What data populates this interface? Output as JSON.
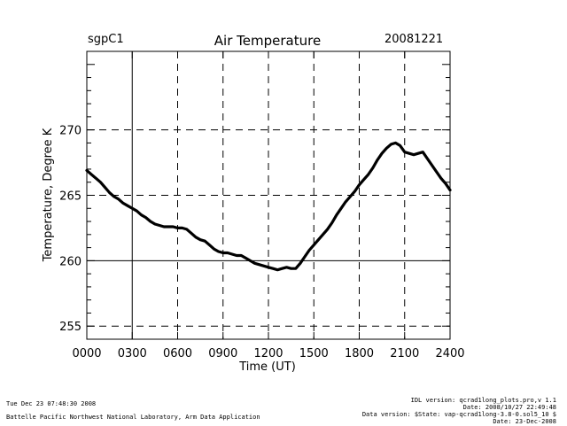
{
  "header": {
    "site": "sgpC1",
    "date": "20081221"
  },
  "footer": {
    "left_line1": "Tue Dec 23 07:48:30 2008",
    "left_line2": "Battelle Pacific Northwest National Laboratory, Arm Data Application",
    "right_line1": "IDL version: qcrad1long_plots.pro,v 1.1",
    "right_line2": "Date: 2008/10/27 22:49:48",
    "right_line3": "Data version: $State: vap-qcrad1long-3.8-0.sol5_10 $",
    "right_line4": "Date: 23-Dec-2008"
  },
  "colors": {
    "line": "#000000",
    "grid": "#000000",
    "background": "#ffffff"
  },
  "chart_data": {
    "type": "line",
    "title": "Air Temperature",
    "xlabel": "Time (UT)",
    "ylabel": "Temperature, Degree K",
    "xlim": [
      0,
      2400
    ],
    "ylim": [
      254,
      276
    ],
    "x_ticks": [
      "0000",
      "0300",
      "0600",
      "0900",
      "1200",
      "1500",
      "1800",
      "2100",
      "2400"
    ],
    "x_tick_values": [
      0,
      300,
      600,
      900,
      1200,
      1500,
      1800,
      2100,
      2400
    ],
    "y_ticks": [
      "255",
      "260",
      "265",
      "270"
    ],
    "y_tick_values": [
      255,
      260,
      265,
      270
    ],
    "grid": "dashed",
    "series": [
      {
        "x": [
          0,
          30,
          60,
          90,
          120,
          150,
          180,
          210,
          240,
          270,
          300,
          330,
          360,
          390,
          420,
          450,
          480,
          510,
          540,
          570,
          600,
          630,
          660,
          690,
          720,
          750,
          780,
          810,
          840,
          870,
          900,
          930,
          960,
          990,
          1020,
          1050,
          1080,
          1110,
          1140,
          1170,
          1200,
          1230,
          1260,
          1290,
          1320,
          1350,
          1380,
          1410,
          1440,
          1470,
          1500,
          1530,
          1560,
          1590,
          1620,
          1650,
          1680,
          1710,
          1740,
          1770,
          1800,
          1830,
          1860,
          1890,
          1920,
          1950,
          1980,
          2010,
          2040,
          2070,
          2100,
          2130,
          2160,
          2190,
          2220,
          2250,
          2280,
          2310,
          2340,
          2370,
          2400
        ],
        "values": [
          266.9,
          266.6,
          266.3,
          266.0,
          265.6,
          265.2,
          264.9,
          264.7,
          264.4,
          264.2,
          264.0,
          263.8,
          263.5,
          263.3,
          263.0,
          262.8,
          262.7,
          262.6,
          262.6,
          262.6,
          262.5,
          262.5,
          262.4,
          262.1,
          261.8,
          261.6,
          261.5,
          261.2,
          260.9,
          260.7,
          260.6,
          260.6,
          260.5,
          260.4,
          260.4,
          260.2,
          260.0,
          259.8,
          259.7,
          259.6,
          259.5,
          259.4,
          259.3,
          259.4,
          259.5,
          259.4,
          259.4,
          259.8,
          260.3,
          260.8,
          261.2,
          261.6,
          262.0,
          262.4,
          262.9,
          263.5,
          264.0,
          264.5,
          264.9,
          265.3,
          265.8,
          266.2,
          266.6,
          267.1,
          267.7,
          268.2,
          268.6,
          268.9,
          269.0,
          268.8,
          268.3,
          268.2,
          268.1,
          268.2,
          268.3,
          267.8,
          267.3,
          266.8,
          266.3,
          265.9,
          265.4
        ]
      }
    ]
  }
}
